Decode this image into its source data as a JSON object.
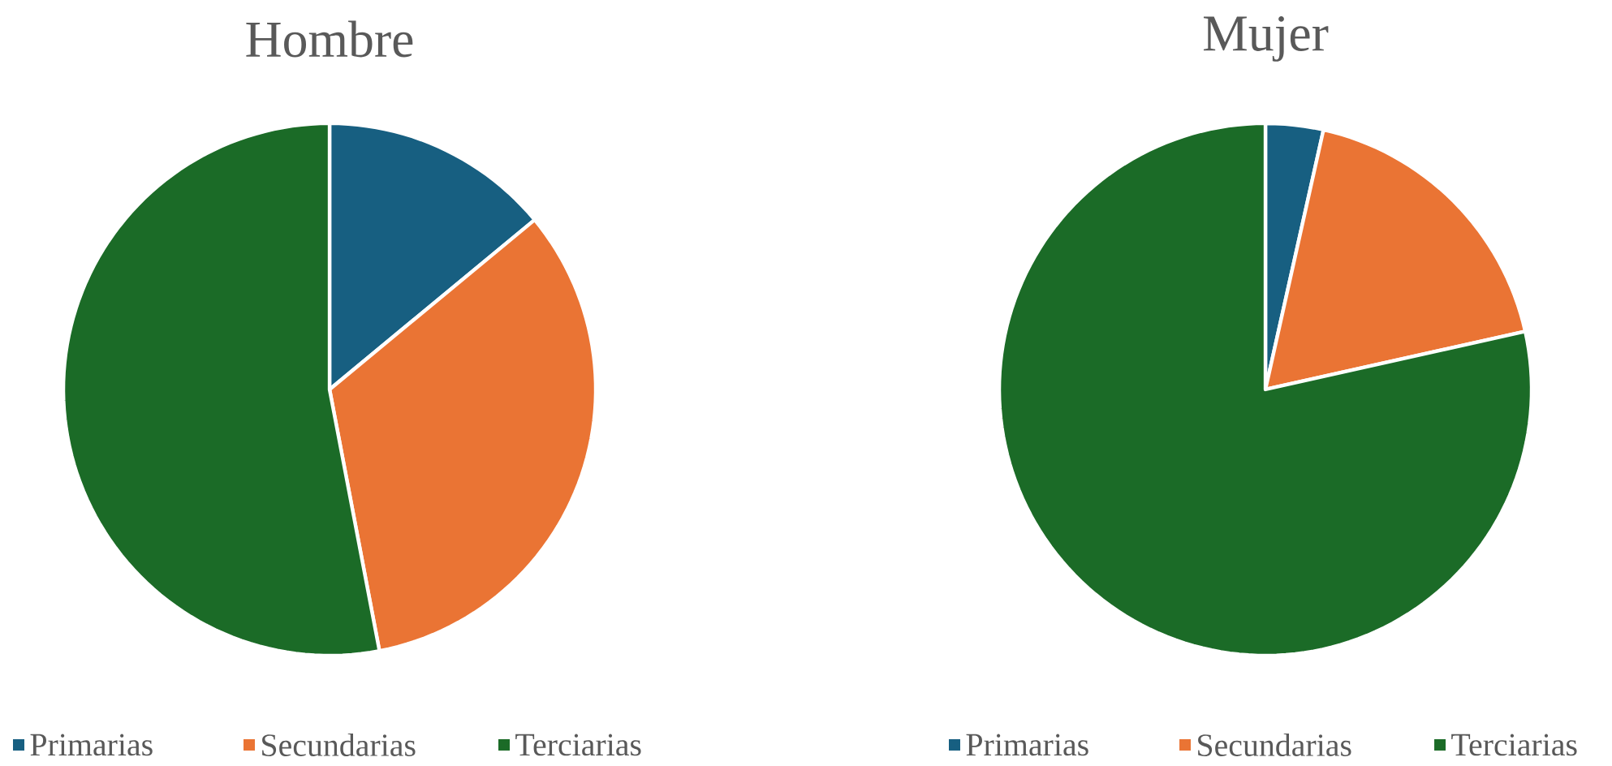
{
  "chart_data": [
    {
      "type": "pie",
      "title": "Hombre",
      "categories": [
        "Primarias",
        "Secundarias",
        "Terciarias"
      ],
      "values": [
        14,
        33,
        53
      ],
      "colors": [
        "#175f81",
        "#ea7434",
        "#1b6b27"
      ],
      "legend": "bottom"
    },
    {
      "type": "pie",
      "title": "Mujer",
      "categories": [
        "Primarias",
        "Secundarias",
        "Terciarias"
      ],
      "values": [
        3.5,
        18,
        78.5
      ],
      "colors": [
        "#175f81",
        "#ea7434",
        "#1b6b27"
      ],
      "legend": "bottom"
    }
  ]
}
